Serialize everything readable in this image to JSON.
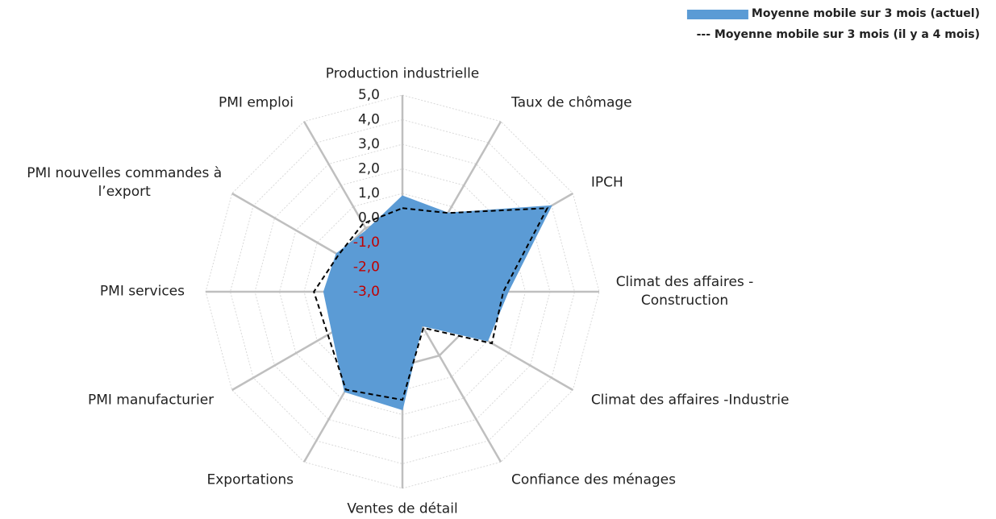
{
  "chart_data": {
    "type": "radar",
    "categories": [
      "Production industrielle",
      "Taux de chômage",
      "IPCH",
      "Climat des affaires -\nConstruction",
      "Climat des affaires -Industrie",
      "Confiance des ménages",
      "Ventes de détail",
      "Exportations",
      "PMI manufacturier",
      "PMI services",
      "PMI nouvelles commandes à\nl’export",
      "PMI emploi"
    ],
    "series": [
      {
        "name": "Moyenne mobile sur 3 mois (actuel)",
        "color": "#5b9bd5",
        "style": "area",
        "values": [
          0.9,
          0.7,
          4.0,
          1.3,
          1.0,
          -1.4,
          1.8,
          1.7,
          0.3,
          0.2,
          0.1,
          -0.1
        ]
      },
      {
        "name": "--- Moyenne mobile sur 3 mois (il y a 4 mois)",
        "color": "#000000",
        "style": "dashed",
        "values": [
          0.4,
          0.7,
          3.8,
          1.1,
          1.2,
          -1.3,
          1.4,
          1.6,
          0.5,
          0.6,
          0.0,
          0.2
        ]
      }
    ],
    "ylim": [
      -3,
      5
    ],
    "yticks": [
      {
        "value": -3,
        "label": "-3,0"
      },
      {
        "value": -2,
        "label": "-2,0"
      },
      {
        "value": -1,
        "label": "-1,0"
      },
      {
        "value": 0,
        "label": "0,0"
      },
      {
        "value": 1,
        "label": "1,0"
      },
      {
        "value": 2,
        "label": "2,0"
      },
      {
        "value": 3,
        "label": "3,0"
      },
      {
        "value": 4,
        "label": "4,0"
      },
      {
        "value": 5,
        "label": "5,0"
      }
    ],
    "negative_tick_color": "#c00000",
    "legend": "top-right"
  }
}
